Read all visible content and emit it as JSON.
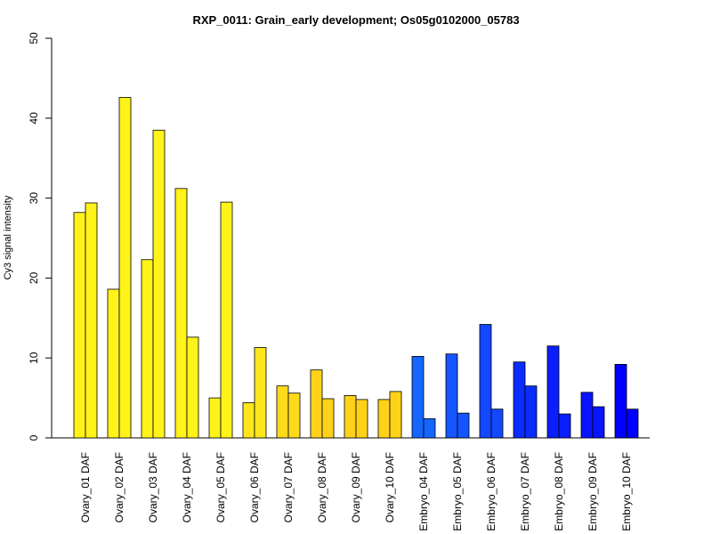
{
  "chart_data": {
    "type": "bar",
    "title": "RXP_0011: Grain_early development; Os05g0102000_05783",
    "xlabel": "",
    "ylabel": "Cy3 signal intensity",
    "ylim": [
      0,
      50
    ],
    "yticks": [
      0,
      10,
      20,
      30,
      40,
      50
    ],
    "grid": false,
    "legend": "none",
    "categories": [
      "Ovary_01 DAF",
      "Ovary_02 DAF",
      "Ovary_03 DAF",
      "Ovary_04 DAF",
      "Ovary_05 DAF",
      "Ovary_06 DAF",
      "Ovary_07 DAF",
      "Ovary_08 DAF",
      "Ovary_09 DAF",
      "Ovary_10 DAF",
      "Embryo_04 DAF",
      "Embryo_05 DAF",
      "Embryo_06 DAF",
      "Embryo_07 DAF",
      "Embryo_08 DAF",
      "Embryo_09 DAF",
      "Embryo_10 DAF"
    ],
    "series": [
      {
        "values": [
          28.2,
          18.6,
          22.3,
          31.2,
          5.0,
          4.4,
          6.5,
          8.5,
          5.3,
          4.8,
          10.2,
          10.5,
          14.2,
          9.5,
          11.5,
          5.7,
          9.2
        ]
      },
      {
        "values": [
          29.4,
          42.6,
          38.5,
          12.6,
          29.5,
          11.3,
          5.6,
          4.9,
          4.8,
          5.8,
          2.4,
          3.1,
          3.6,
          6.5,
          3.0,
          3.9,
          3.6
        ]
      }
    ],
    "colors": [
      "#FFF31A",
      "#FFF31A",
      "#FFF31A",
      "#FFF31A",
      "#FFF31A",
      "#FFE61A",
      "#FFDA1A",
      "#FFD21A",
      "#FFD21A",
      "#FFD21A",
      "#1466FF",
      "#1455FF",
      "#1448FF",
      "#0A2CFF",
      "#0A1EFF",
      "#0A14FF",
      "#0000FF"
    ]
  }
}
